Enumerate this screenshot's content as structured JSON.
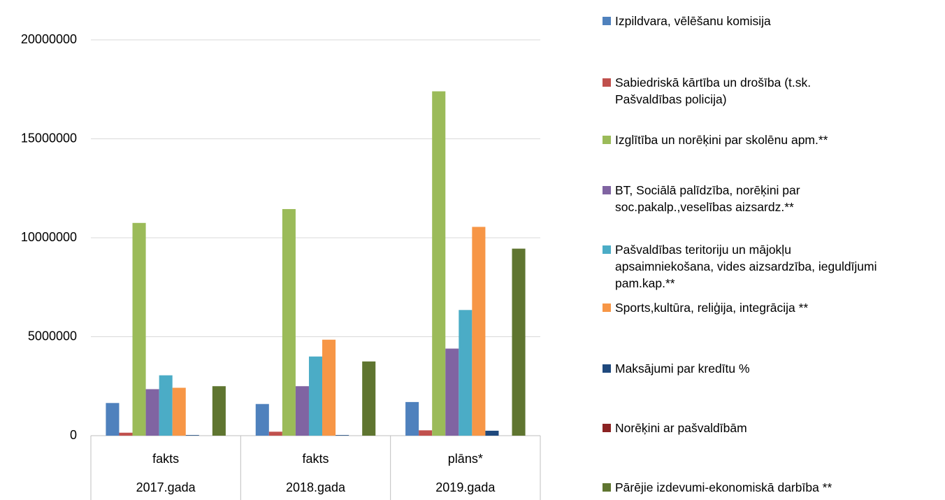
{
  "chart_data": {
    "type": "bar",
    "categories": [
      "fakts",
      "fakts",
      "plāns*"
    ],
    "category_groups": [
      "2017.gada",
      "2018.gada",
      "2019.gada"
    ],
    "ylim": [
      0,
      20000000
    ],
    "yticks": [
      0,
      5000000,
      10000000,
      15000000,
      20000000
    ],
    "grid": true,
    "legend": "right",
    "series": [
      {
        "name": "Izpildvara,  vēlēšanu komisija",
        "color": "#4f81bd",
        "values": [
          1650000,
          1600000,
          1700000
        ]
      },
      {
        "name": "Sabiedriskā kārtība un drošība (t.sk.\nPašvaldības policija)",
        "color": "#c0504d",
        "values": [
          150000,
          200000,
          270000
        ]
      },
      {
        "name": "Izglītība un norēķini par skolēnu apm.**",
        "color": "#9bbb59",
        "values": [
          10750000,
          11450000,
          17400000
        ]
      },
      {
        "name": "BT, Sociālā palīdzība, norēķini par\nsoc.pakalp.,veselības aizsardz.**",
        "color": "#8064a2",
        "values": [
          2350000,
          2500000,
          4400000
        ]
      },
      {
        "name": "Pašvaldības teritoriju un mājokļu\napsaimniekošana, vides aizsardzība, ieguldījumi\npam.kap.**",
        "color": "#4bacc6",
        "values": [
          3050000,
          4000000,
          6350000
        ]
      },
      {
        "name": "Sports,kultūra, reliģija, integrācija **",
        "color": "#f79646",
        "values": [
          2420000,
          4850000,
          10550000
        ]
      },
      {
        "name": "Maksājumi par kredītu %",
        "color": "#1f497d",
        "values": [
          30000,
          30000,
          250000
        ]
      },
      {
        "name": "Norēķini ar pašvaldībām",
        "color": "#8b2323",
        "values": [
          0,
          0,
          0
        ]
      },
      {
        "name": "Pārējie izdevumi-ekonomiskā darbība **",
        "color": "#5f7530",
        "values": [
          2500000,
          3750000,
          9450000
        ]
      }
    ]
  }
}
